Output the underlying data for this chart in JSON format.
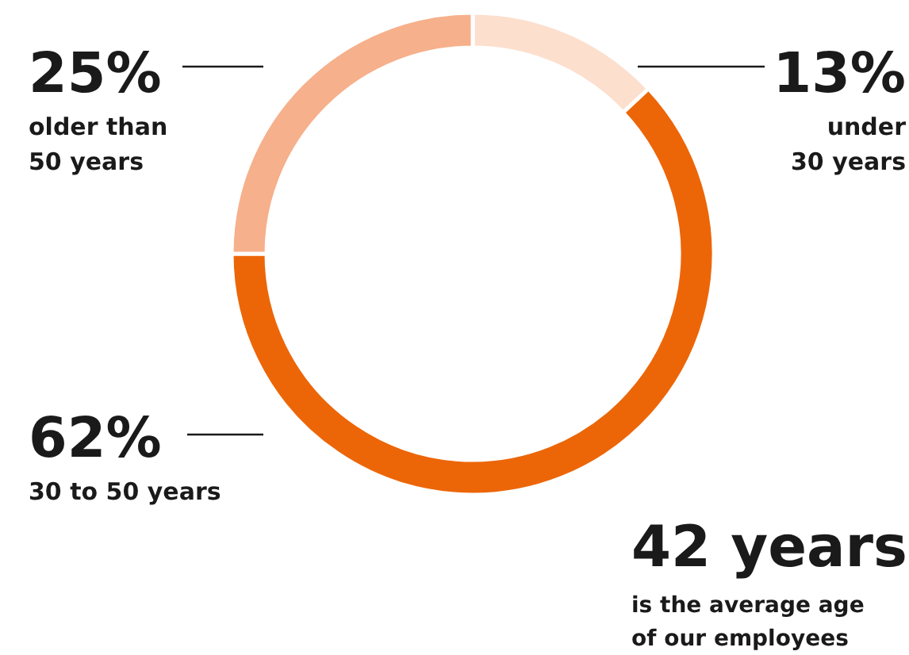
{
  "chart_data": {
    "type": "donut",
    "categories": [
      "under\n30 years",
      "30 to 50 years",
      "older than\n50 years"
    ],
    "values": [
      13,
      62,
      25
    ],
    "colors": [
      "#fcdfcd",
      "#ec6608",
      "#f6b08b"
    ],
    "value_labels": [
      "13%",
      "62%",
      "25%"
    ],
    "annotations": [
      "42 years",
      "is the average age\nof our employees"
    ]
  }
}
